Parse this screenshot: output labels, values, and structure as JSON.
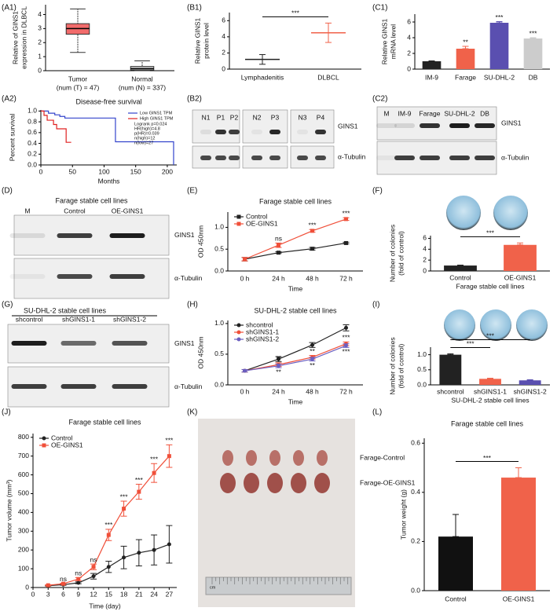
{
  "chart_data": [
    {
      "label": "(A1)",
      "type": "box",
      "ylabel": [
        "Relative of GINS1",
        "expression in DLBCL"
      ],
      "categories": [
        "Tumor",
        "Normal"
      ],
      "category_sublabels": [
        "(num (T) = 47)",
        "(num (N) = 337)"
      ],
      "boxes": [
        {
          "min": 1.3,
          "q1": 2.6,
          "median": 3.0,
          "q3": 3.35,
          "max": 4.4
        },
        {
          "min": 0,
          "q1": 0.05,
          "median": 0.15,
          "q3": 0.3,
          "max": 0.7
        }
      ],
      "colors": [
        "#f26b6b",
        "#d9d9d9"
      ],
      "ylim": [
        0,
        4.7
      ],
      "yticks": [
        0,
        1,
        2,
        3,
        4
      ]
    },
    {
      "label": "(B1)",
      "type": "dot",
      "ylabel": [
        "Relative GINS1",
        "protein level"
      ],
      "categories": [
        "Lymphadenitis",
        "DLBCL"
      ],
      "values": [
        1.2,
        4.5
      ],
      "errors": [
        0.6,
        1.2
      ],
      "colors": [
        "#222222",
        "#f0624a"
      ],
      "ylim": [
        0,
        7
      ],
      "yticks": [
        0,
        2,
        4,
        6
      ],
      "comparisons": [
        {
          "pair": [
            "Lymphadenitis",
            "DLBCL"
          ],
          "label": "***"
        }
      ]
    },
    {
      "label": "(C1)",
      "type": "bar",
      "ylabel": [
        "Relative GINS1",
        "mRNA level"
      ],
      "categories": [
        "IM-9",
        "Farage",
        "SU-DHL-2",
        "DB"
      ],
      "values": [
        1.0,
        2.6,
        5.9,
        3.9
      ],
      "errors": [
        0.05,
        0.3,
        0.15,
        0.1
      ],
      "colors": [
        "#222222",
        "#f0624a",
        "#5a4fb0",
        "#cccccc"
      ],
      "significance": [
        null,
        "**",
        "***",
        "***"
      ],
      "ylim": [
        0,
        7
      ],
      "yticks": [
        0,
        2,
        4,
        6
      ]
    },
    {
      "label": "(A2)",
      "type": "line",
      "step": true,
      "title": "Disease-free survival",
      "xlabel": "Months",
      "ylabel": "Percent survival",
      "series": [
        {
          "name": "Low GINS1 TPM",
          "color": "#3344cc",
          "x": [
            0,
            12,
            22,
            30,
            38,
            118,
            205,
            210
          ],
          "values": [
            1,
            0.96,
            0.93,
            0.9,
            0.87,
            0.43,
            0.43,
            0
          ]
        },
        {
          "name": "High GINS1 TPM",
          "color": "#e02020",
          "x": [
            0,
            5,
            10,
            20,
            25,
            40,
            48
          ],
          "values": [
            1,
            0.92,
            0.83,
            0.75,
            0.67,
            0.42,
            0.42
          ]
        }
      ],
      "stats": [
        "Logrank p=0.024",
        "HR(high)=4.8",
        "p(HR)=0.039",
        "n(high)=12",
        "n(low)=27"
      ],
      "legend": "upper right",
      "xlim": [
        0,
        215
      ],
      "xticks": [
        0,
        50,
        100,
        150,
        200
      ],
      "ylim": [
        0,
        1.02
      ],
      "yticks": [
        {
          "value": 0,
          "label": "0.0"
        },
        0.2,
        0.4,
        0.6,
        0.8,
        {
          "value": 1,
          "label": "1.0"
        }
      ]
    },
    {
      "label": "(E)",
      "type": "line",
      "title": "Farage stable cell lines",
      "xlabel": "Time",
      "ylabel": "OD 450nm",
      "categories": [
        "0 h",
        "24 h",
        "48 h",
        "72 h"
      ],
      "series": [
        {
          "name": "Control",
          "color": "#222222",
          "marker": "square",
          "values": [
            0.27,
            0.42,
            0.51,
            0.64
          ],
          "errors": [
            0.04,
            0.02,
            0.03,
            0.02
          ]
        },
        {
          "name": "OE-GINS1",
          "color": "#f0503a",
          "marker": "square",
          "values": [
            0.27,
            0.59,
            0.92,
            1.19
          ],
          "errors": [
            0.04,
            0.05,
            0.03,
            0.03
          ],
          "significance": [
            null,
            "ns",
            "***",
            "***"
          ]
        }
      ],
      "legend": "upper left",
      "ylim": [
        0,
        1.35
      ],
      "yticks": [
        {
          "value": 0,
          "label": "0.0"
        },
        0.5,
        {
          "value": 1,
          "label": "1.0"
        }
      ]
    },
    {
      "label": "(F)",
      "type": "bar",
      "ylabel": [
        "Number of colonies",
        "(fold of control)"
      ],
      "xlabel": "Farage stable cell lines",
      "categories": [
        "Control",
        "OE-GINS1"
      ],
      "values": [
        1,
        4.8
      ],
      "errors": [
        0.08,
        0.35
      ],
      "colors": [
        "#222222",
        "#f0624a"
      ],
      "comparisons": [
        {
          "pair": [
            "Control",
            "OE-GINS1"
          ],
          "label": "***"
        }
      ],
      "ylim": [
        0,
        6.5
      ],
      "yticks": [
        0,
        2,
        4,
        6
      ]
    },
    {
      "label": "(H)",
      "type": "line",
      "title": "SU-DHL-2 stable cell lines",
      "xlabel": "Time",
      "ylabel": "OD 450nm",
      "categories": [
        "0 h",
        "24 h",
        "48 h",
        "72 h"
      ],
      "series": [
        {
          "name": "shcontrol",
          "color": "#222222",
          "marker": "circle",
          "values": [
            0.23,
            0.42,
            0.65,
            0.93
          ],
          "errors": [
            0.02,
            0.04,
            0.04,
            0.05
          ]
        },
        {
          "name": "shGINS1-1",
          "color": "#f0503a",
          "marker": "circle",
          "values": [
            0.23,
            0.33,
            0.45,
            0.67
          ],
          "errors": [
            0.02,
            0.03,
            0.03,
            0.03
          ],
          "significance": [
            null,
            "**",
            "**",
            "***"
          ]
        },
        {
          "name": "shGINS1-2",
          "color": "#6b5fc0",
          "marker": "circle",
          "values": [
            0.23,
            0.31,
            0.42,
            0.64
          ],
          "errors": [
            0.02,
            0.03,
            0.03,
            0.03
          ],
          "significance": [
            null,
            "**",
            "**",
            "***"
          ],
          "label_position": "below"
        }
      ],
      "legend": "upper left",
      "ylim": [
        0,
        1.05
      ],
      "yticks": [
        {
          "value": 0,
          "label": "0.0"
        },
        0.5,
        {
          "value": 1,
          "label": "1.0"
        }
      ]
    },
    {
      "label": "(I)",
      "type": "bar",
      "ylabel": [
        "Number of colonies",
        "(fold of control)"
      ],
      "xlabel": "SU-DHL-2 stable cell lines",
      "categories": [
        "shcontrol",
        "shGINS1-1",
        "shGINS1-2"
      ],
      "values": [
        1,
        0.2,
        0.15
      ],
      "errors": [
        0.03,
        0.02,
        0.02
      ],
      "colors": [
        "#222222",
        "#f0624a",
        "#5a4fb0"
      ],
      "comparisons": [
        {
          "pair": [
            "shcontrol",
            "shGINS1-1"
          ],
          "label": "***"
        },
        {
          "pair": [
            "shcontrol",
            "shGINS1-2"
          ],
          "label": "***"
        }
      ],
      "ylim": [
        0,
        1.25
      ],
      "yticks": [
        {
          "value": 0,
          "label": "0.0"
        },
        0.5,
        {
          "value": 1,
          "label": "1.0"
        }
      ]
    },
    {
      "label": "(J)",
      "type": "line",
      "title": "Farage stable cell lines",
      "xlabel": "Time (day)",
      "ylabel": "Tumor volume (mm³)",
      "x": [
        3,
        6,
        9,
        12,
        15,
        18,
        21,
        24,
        27
      ],
      "series": [
        {
          "name": "Control",
          "color": "#222222",
          "marker": "circle",
          "values": [
            10,
            15,
            25,
            60,
            110,
            160,
            185,
            200,
            230
          ],
          "errors": [
            2,
            3,
            5,
            15,
            30,
            60,
            70,
            80,
            100
          ]
        },
        {
          "name": "OE-GINS1",
          "color": "#f0503a",
          "marker": "square",
          "values": [
            12,
            20,
            45,
            110,
            280,
            420,
            510,
            610,
            700
          ],
          "errors": [
            2,
            3,
            8,
            15,
            30,
            40,
            40,
            50,
            60
          ],
          "significance": [
            null,
            "ns",
            "ns",
            "ns",
            "***",
            "***",
            "***",
            "***",
            "***"
          ]
        }
      ],
      "legend": "upper left",
      "xlim": [
        0,
        28.5
      ],
      "xticks": [
        0,
        3,
        6,
        9,
        12,
        15,
        18,
        21,
        24,
        27
      ],
      "ylim": [
        0,
        820
      ],
      "yticks": [
        0,
        100,
        200,
        300,
        400,
        500,
        600,
        700,
        800
      ]
    },
    {
      "label": "(L)",
      "type": "bar",
      "title": "Farage stable cell lines",
      "ylabel": "Tumor weight (g)",
      "categories": [
        "Control",
        "OE-GINS1"
      ],
      "values": [
        0.22,
        0.46
      ],
      "errors": [
        0.09,
        0.04
      ],
      "colors": [
        "#111111",
        "#f0624a"
      ],
      "comparisons": [
        {
          "pair": [
            "Control",
            "OE-GINS1"
          ],
          "label": "***"
        }
      ],
      "ylim": [
        0,
        0.62
      ],
      "yticks": [
        {
          "value": 0,
          "label": "0.0"
        },
        0.2,
        0.4,
        0.6
      ]
    }
  ],
  "panels": [
    {
      "label": "(B2)",
      "lanes": [
        "N1",
        "P1",
        "P2",
        "N2",
        "P3",
        "N3",
        "P4"
      ],
      "rows": [
        "GINS1",
        "α-Tubulin"
      ]
    },
    {
      "label": "(C2)",
      "lanes": [
        "M",
        "IM-9",
        "Farage",
        "SU-DHL-2",
        "DB"
      ],
      "rows": [
        "GINS1",
        "α-Tubulin"
      ]
    },
    {
      "label": "(D)",
      "title": "Farage stable cell lines",
      "lanes": [
        "M",
        "Control",
        "OE-GINS1"
      ],
      "rows": [
        "GINS1",
        "α-Tubulin"
      ]
    },
    {
      "label": "(G)",
      "title": "SU-DHL-2 stable cell lines",
      "lanes": [
        "shcontrol",
        "shGINS1-1",
        "shGINS1-2"
      ],
      "rows": [
        "GINS1",
        "α-Tubulin"
      ]
    },
    {
      "label": "(K)",
      "groups": [
        "Farage-Control",
        "Farage-OE-GINS1"
      ],
      "ruler_unit": "cm"
    }
  ]
}
